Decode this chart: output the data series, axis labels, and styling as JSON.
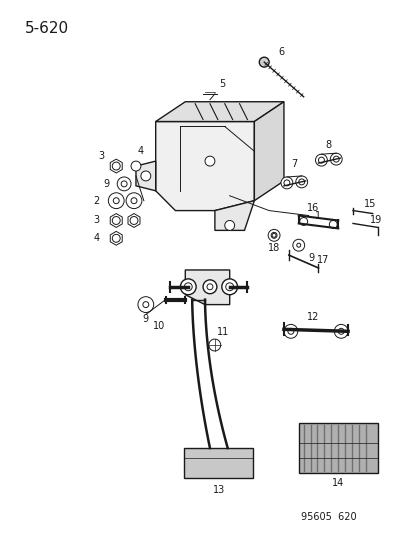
{
  "title": "5-620",
  "footer": "95605  620",
  "bg_color": "#ffffff",
  "line_color": "#1a1a1a",
  "title_fontsize": 11,
  "footer_fontsize": 7
}
